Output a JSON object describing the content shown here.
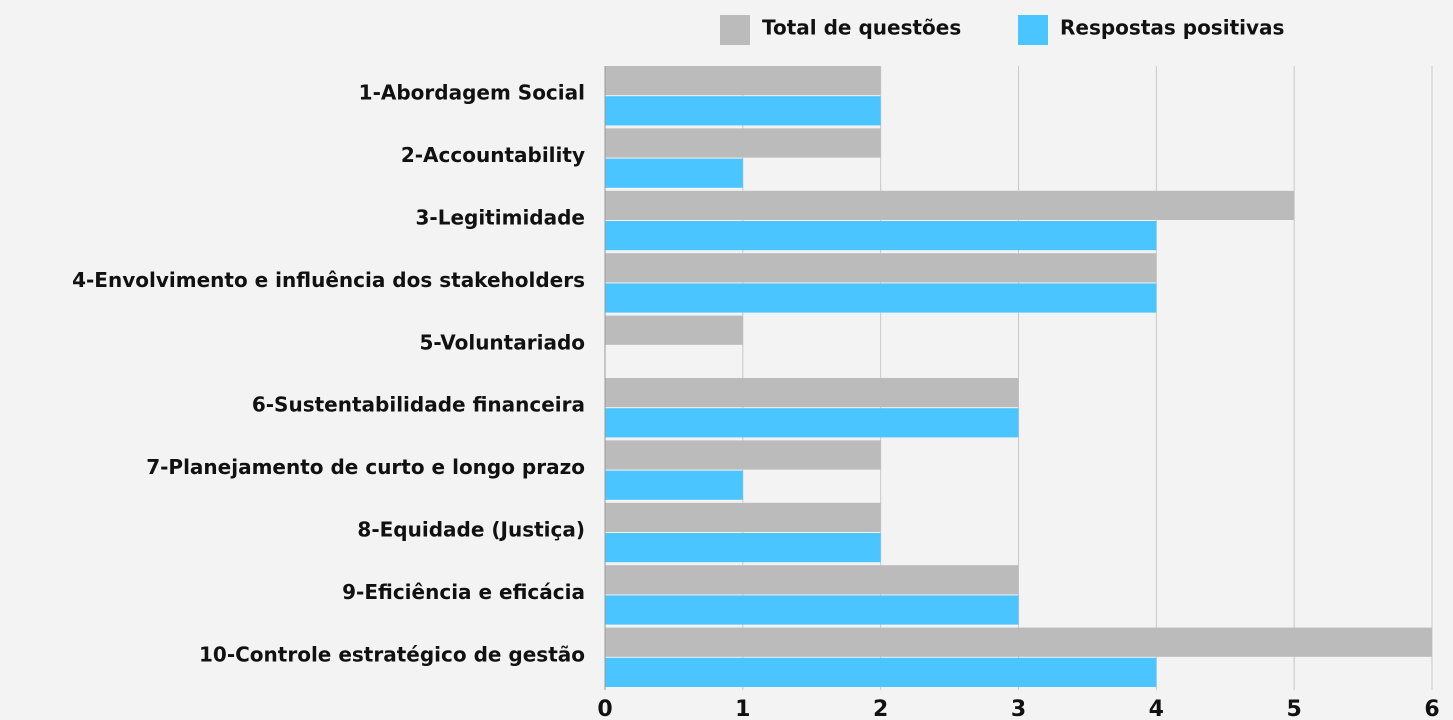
{
  "chart_data": {
    "type": "bar",
    "orientation": "horizontal",
    "categories": [
      "1-Abordagem Social",
      "2-Accountability",
      "3-Legitimidade",
      "4-Envolvimento e influência dos stakeholders",
      "5-Voluntariado",
      "6-Sustentabilidade financeira",
      "7-Planejamento de curto e longo prazo",
      "8-Equidade (Justiça)",
      "9-Eficiência e eficácia",
      "10-Controle estratégico de gestão"
    ],
    "series": [
      {
        "name": "Total de questões",
        "color": "#bbbbbb",
        "values": [
          2,
          2,
          5,
          4,
          1,
          3,
          2,
          2,
          3,
          6
        ]
      },
      {
        "name": "Respostas positivas",
        "color": "#4ac5ff",
        "values": [
          2,
          1,
          4,
          4,
          0,
          3,
          1,
          2,
          3,
          4
        ]
      }
    ],
    "xlim": [
      0,
      6
    ],
    "xticks": [
      0,
      1,
      2,
      3,
      4,
      5,
      6
    ],
    "grid": true,
    "legend": "top"
  }
}
